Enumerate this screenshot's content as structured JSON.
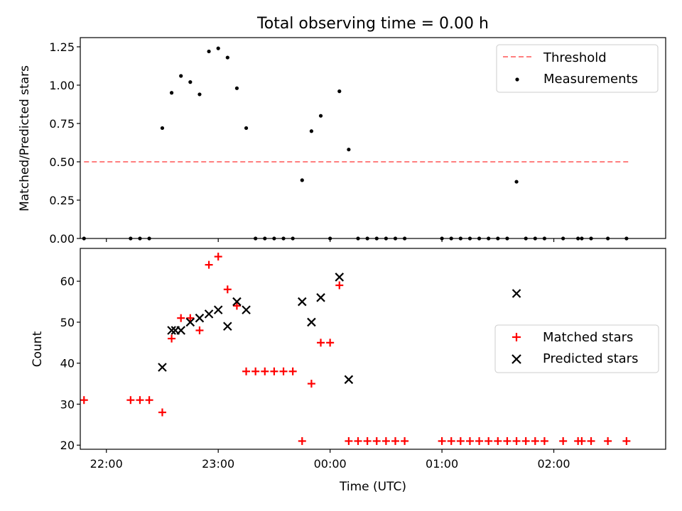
{
  "chart_data": [
    {
      "type": "scatter",
      "title": "Total observing time = 0.00 h",
      "xlabel": "",
      "ylabel": "Matched/Predicted stars",
      "xlim": [
        "21:46",
        "03:00"
      ],
      "ylim": [
        0.0,
        1.31
      ],
      "yticks": [
        "0.00",
        "0.25",
        "0.50",
        "0.75",
        "1.00",
        "1.25"
      ],
      "legend_position": "upper right",
      "series": [
        {
          "name": "Threshold",
          "kind": "dashed-line",
          "color": "#ff7f7f",
          "points": [
            [
              "21:48",
              0.5
            ],
            [
              "02:40",
              0.5
            ]
          ]
        },
        {
          "name": "Measurements",
          "kind": "dot",
          "color": "#000000",
          "points": [
            [
              "21:48",
              0.0
            ],
            [
              "22:13",
              0.0
            ],
            [
              "22:18",
              0.0
            ],
            [
              "22:23",
              0.0
            ],
            [
              "22:30",
              0.72
            ],
            [
              "22:35",
              0.95
            ],
            [
              "22:40",
              1.06
            ],
            [
              "22:45",
              1.02
            ],
            [
              "22:50",
              0.94
            ],
            [
              "22:55",
              1.22
            ],
            [
              "23:00",
              1.24
            ],
            [
              "23:05",
              1.18
            ],
            [
              "23:10",
              0.98
            ],
            [
              "23:15",
              0.72
            ],
            [
              "23:20",
              0.0
            ],
            [
              "23:25",
              0.0
            ],
            [
              "23:30",
              0.0
            ],
            [
              "23:35",
              0.0
            ],
            [
              "23:40",
              0.0
            ],
            [
              "23:45",
              0.38
            ],
            [
              "23:50",
              0.7
            ],
            [
              "23:55",
              0.8
            ],
            [
              "00:00",
              0.0
            ],
            [
              "00:05",
              0.96
            ],
            [
              "00:10",
              0.58
            ],
            [
              "00:15",
              0.0
            ],
            [
              "00:20",
              0.0
            ],
            [
              "00:25",
              0.0
            ],
            [
              "00:30",
              0.0
            ],
            [
              "00:35",
              0.0
            ],
            [
              "00:40",
              0.0
            ],
            [
              "01:00",
              0.0
            ],
            [
              "01:05",
              0.0
            ],
            [
              "01:10",
              0.0
            ],
            [
              "01:15",
              0.0
            ],
            [
              "01:20",
              0.0
            ],
            [
              "01:25",
              0.0
            ],
            [
              "01:30",
              0.0
            ],
            [
              "01:35",
              0.0
            ],
            [
              "01:40",
              0.37
            ],
            [
              "01:45",
              0.0
            ],
            [
              "01:50",
              0.0
            ],
            [
              "01:55",
              0.0
            ],
            [
              "02:05",
              0.0
            ],
            [
              "02:13",
              0.0
            ],
            [
              "02:15",
              0.0
            ],
            [
              "02:20",
              0.0
            ],
            [
              "02:29",
              0.0
            ],
            [
              "02:39",
              0.0
            ]
          ]
        }
      ]
    },
    {
      "type": "scatter",
      "title": "",
      "xlabel": "Time (UTC)",
      "ylabel": "Count",
      "xlim": [
        "21:46",
        "03:00"
      ],
      "ylim": [
        19,
        68
      ],
      "xticks": [
        "22:00",
        "23:00",
        "00:00",
        "01:00",
        "02:00"
      ],
      "yticks": [
        "20",
        "30",
        "40",
        "50",
        "60"
      ],
      "legend_position": "center right",
      "series": [
        {
          "name": "Matched stars",
          "kind": "plus",
          "color": "#ff0000",
          "points": [
            [
              "21:48",
              31
            ],
            [
              "22:13",
              31
            ],
            [
              "22:18",
              31
            ],
            [
              "22:23",
              31
            ],
            [
              "22:30",
              28
            ],
            [
              "22:35",
              46
            ],
            [
              "22:40",
              51
            ],
            [
              "22:45",
              51
            ],
            [
              "22:50",
              48
            ],
            [
              "22:55",
              64
            ],
            [
              "23:00",
              66
            ],
            [
              "23:05",
              58
            ],
            [
              "23:10",
              54
            ],
            [
              "23:15",
              38
            ],
            [
              "23:20",
              38
            ],
            [
              "23:25",
              38
            ],
            [
              "23:30",
              38
            ],
            [
              "23:35",
              38
            ],
            [
              "23:40",
              38
            ],
            [
              "23:45",
              21
            ],
            [
              "23:50",
              35
            ],
            [
              "23:55",
              45
            ],
            [
              "00:00",
              45
            ],
            [
              "00:05",
              59
            ],
            [
              "00:10",
              21
            ],
            [
              "00:15",
              21
            ],
            [
              "00:20",
              21
            ],
            [
              "00:25",
              21
            ],
            [
              "00:30",
              21
            ],
            [
              "00:35",
              21
            ],
            [
              "00:40",
              21
            ],
            [
              "01:00",
              21
            ],
            [
              "01:05",
              21
            ],
            [
              "01:10",
              21
            ],
            [
              "01:15",
              21
            ],
            [
              "01:20",
              21
            ],
            [
              "01:25",
              21
            ],
            [
              "01:30",
              21
            ],
            [
              "01:35",
              21
            ],
            [
              "01:40",
              21
            ],
            [
              "01:45",
              21
            ],
            [
              "01:50",
              21
            ],
            [
              "01:55",
              21
            ],
            [
              "02:05",
              21
            ],
            [
              "02:13",
              21
            ],
            [
              "02:15",
              21
            ],
            [
              "02:20",
              21
            ],
            [
              "02:29",
              21
            ],
            [
              "02:39",
              21
            ]
          ]
        },
        {
          "name": "Predicted stars",
          "kind": "cross",
          "color": "#000000",
          "points": [
            [
              "22:30",
              39
            ],
            [
              "22:35",
              48
            ],
            [
              "22:37",
              48
            ],
            [
              "22:40",
              48
            ],
            [
              "22:45",
              50
            ],
            [
              "22:50",
              51
            ],
            [
              "22:55",
              52
            ],
            [
              "23:00",
              53
            ],
            [
              "23:05",
              49
            ],
            [
              "23:10",
              55
            ],
            [
              "23:15",
              53
            ],
            [
              "23:45",
              55
            ],
            [
              "23:50",
              50
            ],
            [
              "23:55",
              56
            ],
            [
              "00:05",
              61
            ],
            [
              "00:10",
              36
            ],
            [
              "01:40",
              57
            ]
          ]
        }
      ]
    }
  ]
}
